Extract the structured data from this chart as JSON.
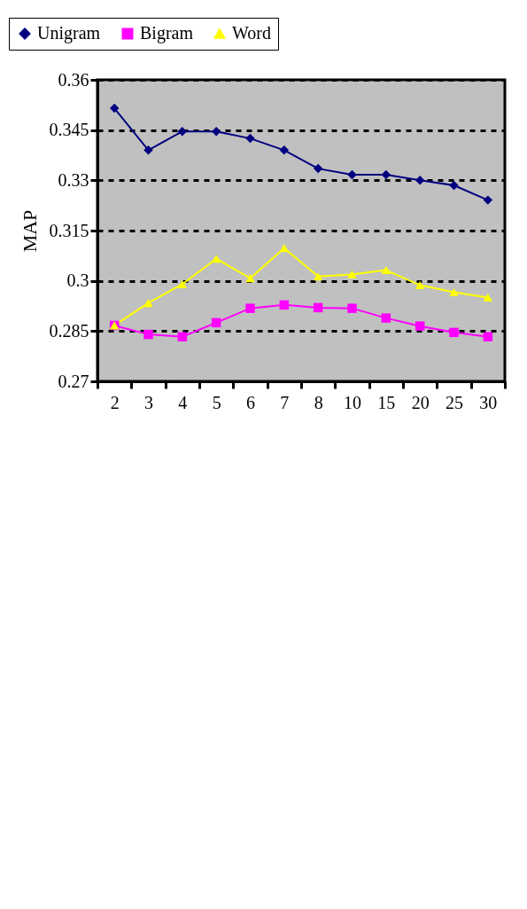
{
  "chart_data": {
    "type": "line",
    "ylabel": "MAP",
    "categories": [
      "2",
      "3",
      "4",
      "5",
      "6",
      "7",
      "8",
      "10",
      "15",
      "20",
      "25",
      "30"
    ],
    "series": [
      {
        "name": "Unigram",
        "color": "#000080",
        "marker": "diamond",
        "values": [
          0.3515,
          0.339,
          0.3446,
          0.3446,
          0.3425,
          0.339,
          0.3335,
          0.3317,
          0.3317,
          0.33,
          0.3285,
          0.3241
        ]
      },
      {
        "name": "Bigram",
        "color": "#ff00ff",
        "marker": "square",
        "values": [
          0.2867,
          0.284,
          0.2833,
          0.2875,
          0.2918,
          0.2928,
          0.292,
          0.2918,
          0.2889,
          0.2865,
          0.2846,
          0.2833
        ]
      },
      {
        "name": "Word",
        "color": "#ffff00",
        "marker": "triangle",
        "values": [
          0.2867,
          0.2934,
          0.299,
          0.3066,
          0.3008,
          0.3098,
          0.3013,
          0.3019,
          0.3032,
          0.2987,
          0.2966,
          0.295
        ]
      }
    ],
    "ylim": [
      0.27,
      0.36
    ],
    "yticks": [
      0.27,
      0.285,
      0.3,
      0.315,
      0.33,
      0.345,
      0.36
    ],
    "grid": "y",
    "legend": "top left"
  }
}
